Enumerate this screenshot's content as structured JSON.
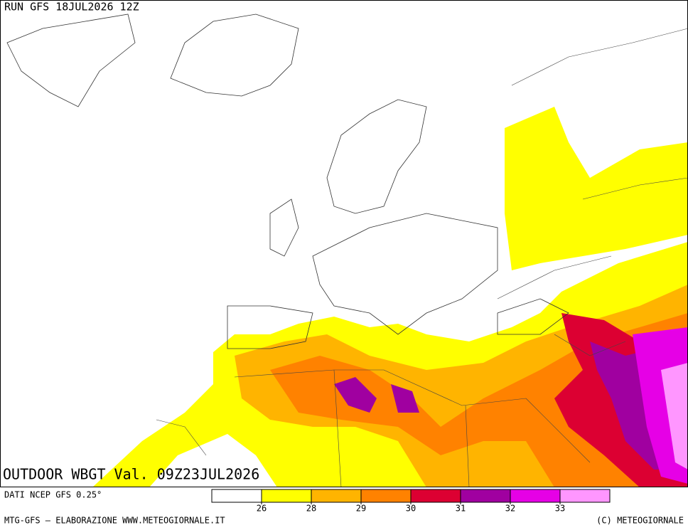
{
  "header": {
    "run": "RUN GFS 18JUL2026 12Z"
  },
  "map": {
    "title": "OUTDOOR WBGT Val. 09Z23JUL2026"
  },
  "legend": {
    "source": "DATI NCEP GFS 0.25°",
    "colors": [
      "#ffffff",
      "#ffff00",
      "#ffb400",
      "#ff8200",
      "#dc0032",
      "#a000a0",
      "#e600e6",
      "#ff96ff"
    ],
    "labels": [
      26,
      28,
      29,
      30,
      31,
      32,
      33
    ]
  },
  "footer": {
    "left": "MTG-GFS — ELABORAZIONE WWW.METEOGIORNALE.IT",
    "right": "(C) METEOGIORNALE"
  }
}
